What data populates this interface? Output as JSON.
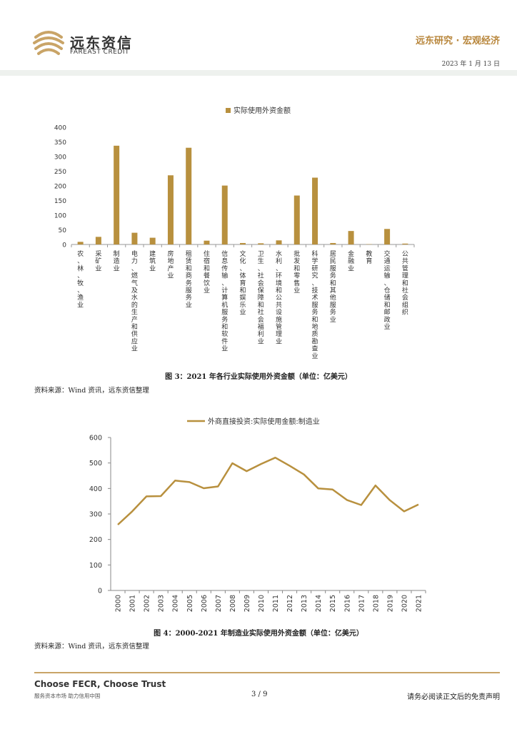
{
  "header": {
    "brand_cn": "远东资信",
    "brand_en": "FAREAST CREDIT",
    "section_title": "远东研究 · 宏观经济",
    "date": "2023 年 1 月 13 日"
  },
  "figure3": {
    "caption": "图 3：2021 年各行业实际使用外资金额（单位：亿美元）",
    "source": "资料来源：Wind 资讯，远东资信整理",
    "chart_data": {
      "type": "bar",
      "legend": "实际使用外资金额",
      "ylim": [
        0,
        400
      ],
      "yticks": [
        0,
        50,
        100,
        150,
        200,
        250,
        300,
        350,
        400
      ],
      "categories": [
        "农、林、牧、渔业",
        "采矿业",
        "制造业",
        "电力、燃气及水的生产和供应业",
        "建筑业",
        "房地产业",
        "租赁和商务服务业",
        "住宿和餐饮业",
        "信息传输、计算机服务和软件业",
        "文化、体育和娱乐业",
        "卫生、社会保障和社会福利业",
        "水利、环境和公共设施管理业",
        "批发和零售业",
        "科学研究、技术服务和地质勘查业",
        "居民服务和其他服务业",
        "金融业",
        "教育",
        "交通运输、仓储和邮政业",
        "公共管理和社会组织"
      ],
      "values": [
        9,
        26,
        337,
        40,
        23,
        236,
        330,
        13,
        201,
        5,
        4,
        14,
        167,
        228,
        5,
        46,
        1,
        53,
        3
      ],
      "color": "#b8903e"
    }
  },
  "figure4": {
    "caption": "图 4：2000-2021 年制造业实际使用外资金额（单位：亿美元）",
    "source": "资料来源：Wind 资讯，远东资信整理",
    "chart_data": {
      "type": "line",
      "legend": "外商直接投资:实际使用金额:制造业",
      "ylim": [
        0,
        600
      ],
      "yticks": [
        0,
        100,
        200,
        300,
        400,
        500,
        600
      ],
      "x": [
        "2000",
        "2001",
        "2002",
        "2003",
        "2004",
        "2005",
        "2006",
        "2007",
        "2008",
        "2009",
        "2010",
        "2011",
        "2012",
        "2013",
        "2014",
        "2015",
        "2016",
        "2017",
        "2018",
        "2019",
        "2020",
        "2021"
      ],
      "values": [
        258,
        310,
        369,
        370,
        431,
        425,
        401,
        408,
        499,
        468,
        496,
        521,
        489,
        455,
        400,
        396,
        355,
        335,
        412,
        354,
        310,
        337
      ],
      "color": "#b8903e"
    }
  },
  "footer": {
    "slogan": "Choose FECR, Choose Trust",
    "subline": "服务资本市场  助力信用中国",
    "page": "3 / 9",
    "disclaimer": "请务必阅读正文后的免责声明"
  }
}
